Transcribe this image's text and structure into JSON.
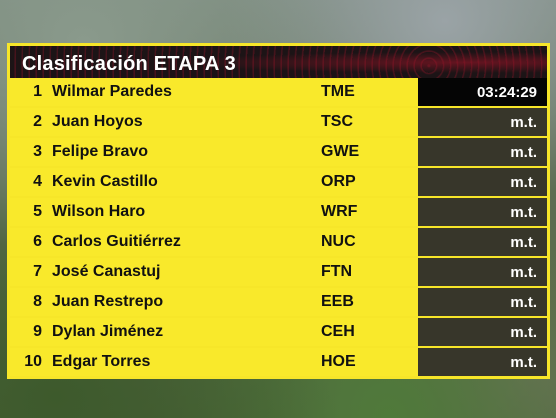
{
  "header": {
    "title": "Clasificación ETAPA 3"
  },
  "table": {
    "rows": [
      [
        "1",
        "Wilmar Paredes",
        "TME",
        "03:24:29"
      ],
      [
        "2",
        "Juan Hoyos",
        "TSC",
        "m.t."
      ],
      [
        "3",
        "Felipe Bravo",
        "GWE",
        "m.t."
      ],
      [
        "4",
        "Kevin Castillo",
        "ORP",
        "m.t."
      ],
      [
        "5",
        "Wilson Haro",
        "WRF",
        "m.t."
      ],
      [
        "6",
        "Carlos Guitiérrez",
        "NUC",
        "m.t."
      ],
      [
        "7",
        "José Canastuj",
        "FTN",
        "m.t."
      ],
      [
        "8",
        "Juan Restrepo",
        "EEB",
        "m.t."
      ],
      [
        "9",
        "Dylan Jiménez",
        "CEH",
        "m.t."
      ],
      [
        "10",
        "Edgar Torres",
        "HOE",
        "m.t."
      ]
    ]
  }
}
